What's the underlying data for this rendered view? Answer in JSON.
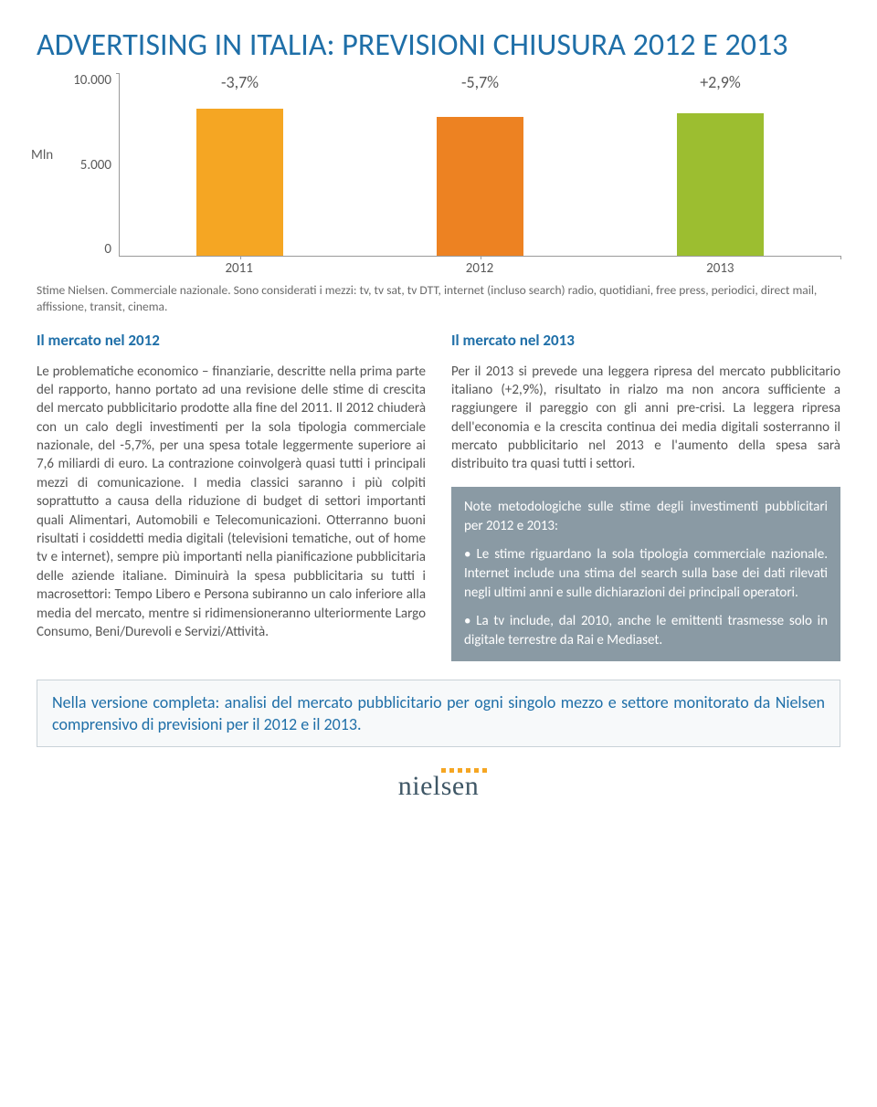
{
  "title": "ADVERTISING IN ITALIA: PREVISIONI CHIUSURA 2012 E 2013",
  "chart": {
    "type": "bar",
    "y_label": "Mln",
    "y_max": 10000,
    "y_ticks": [
      "10.000",
      "5.000",
      "0"
    ],
    "categories": [
      "2011",
      "2012",
      "2013"
    ],
    "value_labels": [
      "-3,7%",
      "-5,7%",
      "+2,9%"
    ],
    "bar_heights_pct": [
      81,
      76.4,
      78.6
    ],
    "bar_colors": [
      "#f5a623",
      "#ed8222",
      "#9cbe30"
    ],
    "axis_color": "#9a9a9a",
    "label_color": "#5a5a5a"
  },
  "source": "Stime Nielsen. Commerciale nazionale. Sono considerati i mezzi: tv, tv sat, tv DTT, internet (incluso search) radio, quotidiani, free press, periodici, direct mail, affissione, transit, cinema.",
  "left": {
    "heading": "Il mercato nel 2012",
    "body": "Le problematiche economico – finanziarie, descritte nella prima parte del rapporto, hanno portato ad una revisione delle stime di crescita del mercato pubblicitario prodotte alla fine del 2011. Il 2012 chiuderà con un calo degli investimenti per la sola tipologia commerciale nazionale, del -5,7%, per una spesa totale leggermente superiore ai 7,6 miliardi di euro. La contrazione coinvolgerà quasi tutti i principali mezzi di comunicazione. I media classici saranno i più colpiti soprattutto a causa della riduzione di budget di settori importanti quali Alimentari, Automobili e Telecomunicazioni. Otterranno buoni risultati i cosiddetti media digitali (televisioni tematiche, out of home tv e internet), sempre più importanti nella pianificazione pubblicitaria delle aziende italiane. Diminuirà la spesa pubblicitaria su tutti i macrosettori: Tempo Libero e Persona subiranno un calo inferiore alla media del mercato, mentre si ridimensioneranno ulteriormente Largo Consumo, Beni/Durevoli e Servizi/Attività."
  },
  "right": {
    "heading": "Il mercato nel 2013",
    "body": "Per il 2013 si prevede una leggera ripresa del mercato pubblicitario italiano (+2,9%), risultato in rialzo ma non ancora sufficiente a raggiungere il pareggio con gli anni pre-crisi. La leggera ripresa dell'economia e la crescita continua dei media digitali sosterranno il mercato pubblicitario nel 2013 e l'aumento della spesa sarà distribuito tra quasi tutti i settori.",
    "notes_title": "Note metodologiche sulle stime degli investimenti pubblicitari per 2012 e 2013:",
    "notes": [
      "• Le stime riguardano la sola tipologia commerciale nazionale. Internet include una stima del search sulla base dei dati rilevati negli ultimi anni e sulle dichiarazioni dei principali operatori.",
      "• La tv include, dal 2010, anche le emittenti trasmesse solo in digitale terrestre da Rai e Mediaset."
    ]
  },
  "footer": "Nella versione completa: analisi del mercato pubblicitario per ogni singolo mezzo e settore monitorato da Nielsen comprensivo di previsioni per il 2012 e il 2013.",
  "logo": {
    "text": "nielsen",
    "dot_color": "#f5a623",
    "text_color": "#3f5766"
  }
}
